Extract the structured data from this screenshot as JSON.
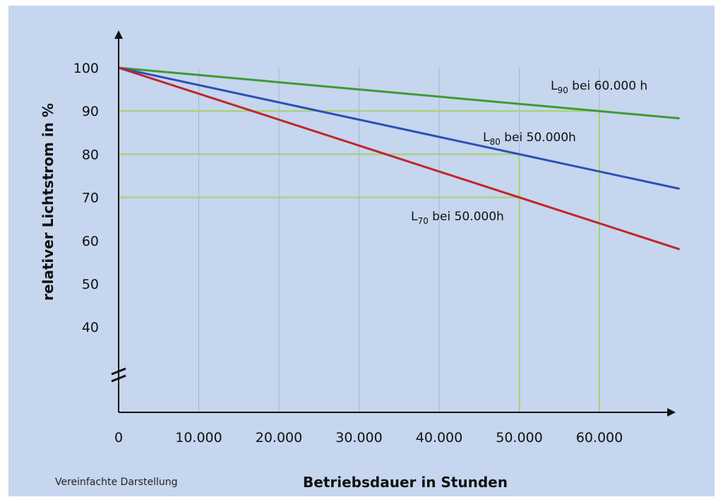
{
  "chart_data": {
    "type": "line",
    "xlabel": "Betriebsdauer in Stunden",
    "ylabel": "relativer Lichtstrom in %",
    "xlim": [
      0,
      70000
    ],
    "ylim": [
      40,
      100
    ],
    "y_axis_break": true,
    "x_ticks": [
      0,
      10000,
      20000,
      30000,
      40000,
      50000,
      60000
    ],
    "x_tick_labels": [
      "0",
      "10.000",
      "20.000",
      "30.000",
      "40.000",
      "50.000",
      "60.000"
    ],
    "y_ticks": [
      40,
      50,
      60,
      70,
      80,
      90,
      100
    ],
    "y_tick_labels": [
      "40",
      "50",
      "60",
      "70",
      "80",
      "90",
      "100"
    ],
    "grid": "vertical",
    "series": [
      {
        "id": "l90",
        "color": "#3f9a32",
        "x": [
          0,
          70000
        ],
        "y": [
          100,
          88.3
        ]
      },
      {
        "id": "l80",
        "color": "#2f4fb5",
        "x": [
          0,
          70000
        ],
        "y": [
          100,
          72
        ]
      },
      {
        "id": "l70",
        "color": "#c0262a",
        "x": [
          0,
          70000
        ],
        "y": [
          100,
          58
        ]
      }
    ],
    "reference_lines": [
      {
        "y": 90,
        "x": 60000,
        "color": "#a6d06a"
      },
      {
        "y": 80,
        "x": 50000,
        "color": "#a6d06a"
      },
      {
        "y": 70,
        "x": 50000,
        "color": "#a6d06a"
      }
    ],
    "annotations": [
      {
        "id": "l90",
        "symbol": "L",
        "subscript": "90",
        "text": " bei 60.000 h"
      },
      {
        "id": "l80",
        "symbol": "L",
        "subscript": "80",
        "text": " bei 50.000h"
      },
      {
        "id": "l70",
        "symbol": "L",
        "subscript": "70",
        "text": " bei 50.000h"
      }
    ]
  },
  "note": "Vereinfachte Darstellung"
}
